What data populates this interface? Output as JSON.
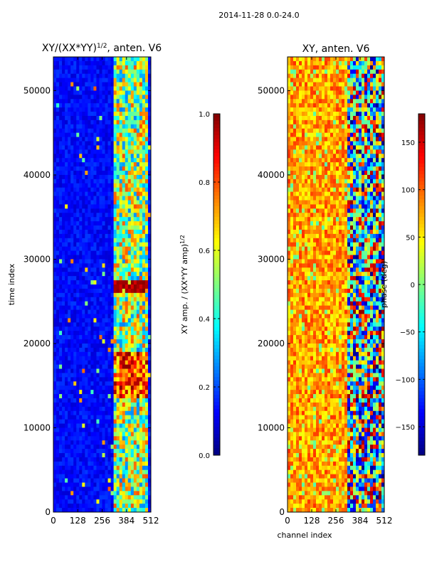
{
  "suptitle": "2014-11-28 0.0-24.0",
  "chart_data": [
    {
      "type": "heatmap",
      "title_main": "XY/(XX*YY)",
      "title_sup": "1/2",
      "title_rest": ", anten. V6",
      "xlabel": "",
      "ylabel": "time index",
      "xlim": [
        0,
        512
      ],
      "ylim": [
        0,
        54000
      ],
      "xticks": [
        0,
        128,
        256,
        384,
        512
      ],
      "yticks": [
        0,
        10000,
        20000,
        30000,
        40000,
        50000
      ],
      "colormap": "jet",
      "colorbar": {
        "label_main": "XY amp. / (XX*YY amp)",
        "label_sup": "1/2",
        "range": [
          0.0,
          1.0
        ],
        "ticks": [
          0.0,
          0.2,
          0.4,
          0.6,
          0.8,
          1.0
        ],
        "tick_labels": [
          "0.0",
          "0.2",
          "0.4",
          "0.6",
          "0.8",
          "1.0"
        ]
      }
    },
    {
      "type": "heatmap",
      "title": "XY, anten. V6",
      "xlabel": "channel index",
      "ylabel": "",
      "xlim": [
        0,
        512
      ],
      "ylim": [
        0,
        54000
      ],
      "xticks": [
        0,
        128,
        256,
        384,
        512
      ],
      "yticks": [
        0,
        10000,
        20000,
        30000,
        40000,
        50000
      ],
      "colormap": "jet",
      "colorbar": {
        "label": "phase (deg)",
        "range": [
          -180,
          180
        ],
        "ticks": [
          -150,
          -100,
          -50,
          0,
          50,
          100,
          150
        ],
        "tick_labels": [
          "−150",
          "−100",
          "−50",
          "0",
          "50",
          "100",
          "150"
        ]
      }
    }
  ]
}
